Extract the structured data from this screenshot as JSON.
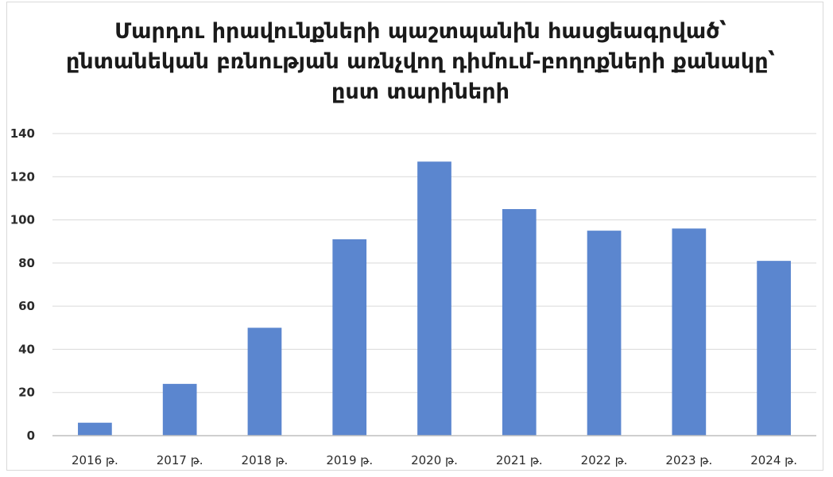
{
  "chart_data": {
    "type": "bar",
    "title": "Մարդու իրավունքների պաշտպանին հասցեագրված՝ ընտանեկան բռնության առնչվող դիմում-բողոքների քանակը՝ ըստ տարիների",
    "categories": [
      "2016 թ.",
      "2017 թ.",
      "2018 թ.",
      "2019 թ.",
      "2020 թ.",
      "2021 թ.",
      "2022 թ.",
      "2023 թ.",
      "2024 թ."
    ],
    "values": [
      6,
      24,
      50,
      91,
      127,
      105,
      95,
      96,
      81
    ],
    "ylim": [
      0,
      140
    ],
    "yticks": [
      0,
      20,
      40,
      60,
      80,
      100,
      120,
      140
    ],
    "xlabel": "",
    "ylabel": "",
    "grid": true,
    "legend": "none",
    "bar_color": "#5b86cf",
    "grid_color": "#d9d9d9",
    "axis_color": "#bfbfbf"
  }
}
